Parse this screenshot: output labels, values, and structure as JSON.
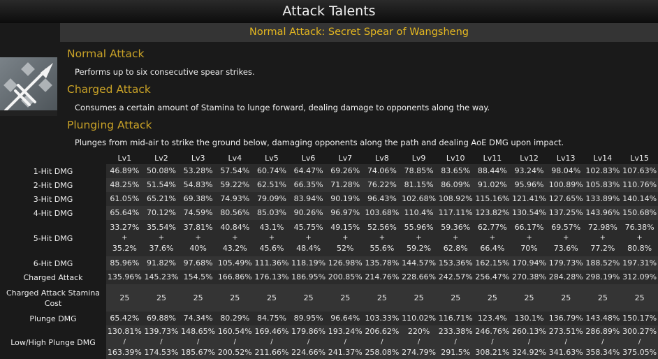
{
  "title": "Attack Talents",
  "talent_name": "Normal Attack: Secret Spear of Wangsheng",
  "icon": "spear-talent-icon",
  "colors": {
    "heading": "#c9a227",
    "talent_name": "#e6b820"
  },
  "sections": [
    {
      "heading": "Normal Attack",
      "text": "Performs up to six consecutive spear strikes."
    },
    {
      "heading": "Charged Attack",
      "text": "Consumes a certain amount of Stamina to lunge forward, dealing damage to opponents along the way."
    },
    {
      "heading": "Plunging Attack",
      "text": "Plunges from mid-air to strike the ground below, damaging opponents along the path and dealing AoE DMG upon impact."
    }
  ],
  "table": {
    "levels": [
      "Lv1",
      "Lv2",
      "Lv3",
      "Lv4",
      "Lv5",
      "Lv6",
      "Lv7",
      "Lv8",
      "Lv9",
      "Lv10",
      "Lv11",
      "Lv12",
      "Lv13",
      "Lv14",
      "Lv15"
    ],
    "rows": [
      {
        "label": "1-Hit DMG",
        "values": [
          "46.89%",
          "50.08%",
          "53.28%",
          "57.54%",
          "60.74%",
          "64.47%",
          "69.26%",
          "74.06%",
          "78.85%",
          "83.65%",
          "88.44%",
          "93.24%",
          "98.04%",
          "102.83%",
          "107.63%"
        ]
      },
      {
        "label": "2-Hit DMG",
        "values": [
          "48.25%",
          "51.54%",
          "54.83%",
          "59.22%",
          "62.51%",
          "66.35%",
          "71.28%",
          "76.22%",
          "81.15%",
          "86.09%",
          "91.02%",
          "95.96%",
          "100.89%",
          "105.83%",
          "110.76%"
        ]
      },
      {
        "label": "3-Hit DMG",
        "values": [
          "61.05%",
          "65.21%",
          "69.38%",
          "74.93%",
          "79.09%",
          "83.94%",
          "90.19%",
          "96.43%",
          "102.68%",
          "108.92%",
          "115.16%",
          "121.41%",
          "127.65%",
          "133.89%",
          "140.14%"
        ]
      },
      {
        "label": "4-Hit DMG",
        "values": [
          "65.64%",
          "70.12%",
          "74.59%",
          "80.56%",
          "85.03%",
          "90.26%",
          "96.97%",
          "103.68%",
          "110.4%",
          "117.11%",
          "123.82%",
          "130.54%",
          "137.25%",
          "143.96%",
          "150.68%"
        ]
      },
      {
        "label": "5-Hit DMG",
        "values": [
          [
            "33.27%",
            "+",
            "35.2%"
          ],
          [
            "35.54%",
            "+",
            "37.6%"
          ],
          [
            "37.81%",
            "+",
            "40%"
          ],
          [
            "40.84%",
            "+",
            "43.2%"
          ],
          [
            "43.1%",
            "+",
            "45.6%"
          ],
          [
            "45.75%",
            "+",
            "48.4%"
          ],
          [
            "49.15%",
            "+",
            "52%"
          ],
          [
            "52.56%",
            "+",
            "55.6%"
          ],
          [
            "55.96%",
            "+",
            "59.2%"
          ],
          [
            "59.36%",
            "+",
            "62.8%"
          ],
          [
            "62.77%",
            "+",
            "66.4%"
          ],
          [
            "66.17%",
            "+",
            "70%"
          ],
          [
            "69.57%",
            "+",
            "73.6%"
          ],
          [
            "72.98%",
            "+",
            "77.2%"
          ],
          [
            "76.38%",
            "+",
            "80.8%"
          ]
        ]
      },
      {
        "label": "6-Hit DMG",
        "values": [
          "85.96%",
          "91.82%",
          "97.68%",
          "105.49%",
          "111.36%",
          "118.19%",
          "126.98%",
          "135.78%",
          "144.57%",
          "153.36%",
          "162.15%",
          "170.94%",
          "179.73%",
          "188.52%",
          "197.31%"
        ]
      },
      {
        "label": "Charged Attack",
        "values": [
          "135.96%",
          "145.23%",
          "154.5%",
          "166.86%",
          "176.13%",
          "186.95%",
          "200.85%",
          "214.76%",
          "228.66%",
          "242.57%",
          "256.47%",
          "270.38%",
          "284.28%",
          "298.19%",
          "312.09%"
        ]
      },
      {
        "label": "Charged Attack Stamina Cost",
        "values": [
          "25",
          "25",
          "25",
          "25",
          "25",
          "25",
          "25",
          "25",
          "25",
          "25",
          "25",
          "25",
          "25",
          "25",
          "25"
        ]
      },
      {
        "label": "Plunge DMG",
        "values": [
          "65.42%",
          "69.88%",
          "74.34%",
          "80.29%",
          "84.75%",
          "89.95%",
          "96.64%",
          "103.33%",
          "110.02%",
          "116.71%",
          "123.4%",
          "130.1%",
          "136.79%",
          "143.48%",
          "150.17%"
        ]
      },
      {
        "label": "Low/High Plunge DMG",
        "values": [
          [
            "130.81%",
            "/",
            "163.39%"
          ],
          [
            "139.73%",
            "/",
            "174.53%"
          ],
          [
            "148.65%",
            "/",
            "185.67%"
          ],
          [
            "160.54%",
            "/",
            "200.52%"
          ],
          [
            "169.46%",
            "/",
            "211.66%"
          ],
          [
            "179.86%",
            "/",
            "224.66%"
          ],
          [
            "193.24%",
            "/",
            "241.37%"
          ],
          [
            "206.62%",
            "/",
            "258.08%"
          ],
          [
            "220%",
            "/",
            "274.79%"
          ],
          [
            "233.38%",
            "/",
            "291.5%"
          ],
          [
            "246.76%",
            "/",
            "308.21%"
          ],
          [
            "260.13%",
            "/",
            "324.92%"
          ],
          [
            "273.51%",
            "/",
            "341.63%"
          ],
          [
            "286.89%",
            "/",
            "358.34%"
          ],
          [
            "300.27%",
            "/",
            "375.05%"
          ]
        ]
      }
    ]
  }
}
